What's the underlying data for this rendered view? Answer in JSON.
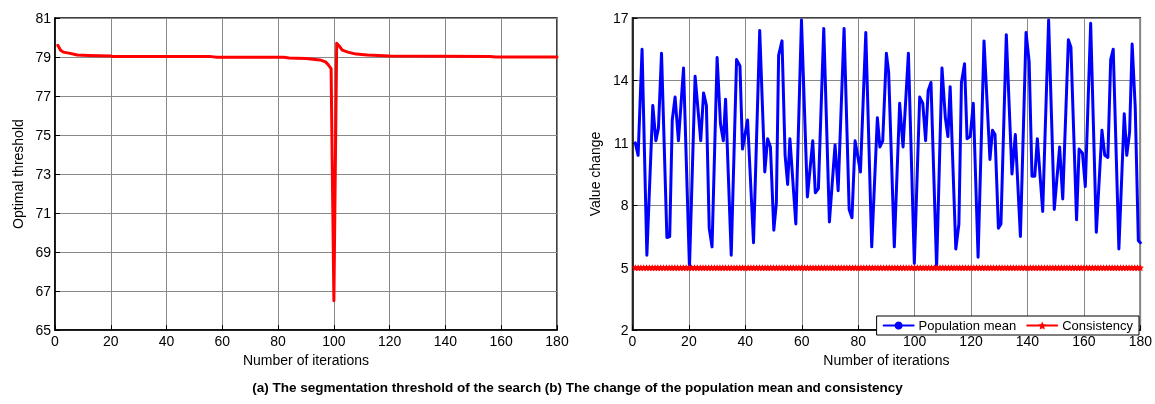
{
  "chart_data": [
    {
      "type": "line",
      "xlabel": "Number of iterations",
      "ylabel": "Optimal threshold",
      "annotations": [
        "(a) The segmentation threshold of the search (b) The change of the population mean and consistency"
      ],
      "xlim": [
        0,
        180
      ],
      "xticks": [
        0,
        20,
        40,
        60,
        80,
        100,
        120,
        140,
        160,
        180
      ],
      "ylim": [
        65,
        81
      ],
      "yticks": [
        65,
        67,
        69,
        71,
        73,
        75,
        77,
        79,
        81
      ],
      "grid": true,
      "marker": "none",
      "line_style": "solid",
      "series": [
        {
          "color": "#ff0000",
          "x": [
            1,
            2,
            3,
            5,
            8,
            12,
            20,
            21,
            56,
            58,
            82,
            84,
            90,
            95,
            97,
            98,
            99,
            100,
            101,
            102,
            103,
            105,
            108,
            112,
            120,
            156,
            158,
            180
          ],
          "values": [
            79.6,
            79.35,
            79.25,
            79.2,
            79.1,
            79.08,
            79.05,
            79.02,
            79.02,
            78.99,
            78.99,
            78.95,
            78.92,
            78.85,
            78.75,
            78.6,
            78.4,
            66.5,
            79.7,
            79.55,
            79.35,
            79.25,
            79.15,
            79.1,
            79.05,
            79.03,
            79.0,
            79.0
          ]
        }
      ]
    },
    {
      "type": "line",
      "xlabel": "Number of iterations",
      "ylabel": "Value change",
      "xlim": [
        0,
        180
      ],
      "xticks": [
        0,
        20,
        40,
        60,
        80,
        100,
        120,
        140,
        160,
        180
      ],
      "ylim": [
        2,
        17
      ],
      "yticks": [
        2,
        5,
        8,
        11,
        14,
        17
      ],
      "grid": true,
      "legend": "bottom right",
      "line_style": "solid",
      "series": [
        {
          "name": "Population mean",
          "color": "#0000ff",
          "marker": "none",
          "x": [
            1,
            2,
            3.4,
            5.1,
            7.2,
            8.3,
            9.2,
            10.3,
            12.2,
            13.2,
            14.1,
            15.1,
            16.3,
            18.1,
            20.2,
            22.2,
            24.2,
            25.2,
            26.2,
            27.2,
            28.2,
            30,
            31.2,
            32.2,
            33,
            35,
            36.9,
            38.1,
            39,
            40.8,
            42.9,
            45.1,
            46.9,
            47.9,
            48.9,
            50.1,
            51,
            51.8,
            53,
            54.1,
            55,
            55.8,
            57.9,
            59.9,
            62,
            63.9,
            64.8,
            65.9,
            67.8,
            69.8,
            71.8,
            72.9,
            75,
            76.8,
            77.8,
            78.9,
            80.8,
            82.7,
            84.8,
            86.8,
            87.7,
            88.7,
            90,
            90.8,
            92.8,
            94.7,
            95.9,
            97.8,
            99.9,
            101.8,
            102.9,
            103.9,
            104.8,
            105.8,
            107.8,
            109.7,
            110.9,
            111.8,
            112.6,
            114.6,
            115.7,
            116.6,
            117.7,
            118.6,
            119.7,
            120.8,
            122.5,
            124.6,
            126.7,
            127.6,
            128.5,
            129.7,
            130.6,
            132.5,
            134.5,
            135.7,
            137.5,
            139.5,
            140.6,
            141.6,
            142.6,
            143.5,
            145.4,
            147.5,
            149.5,
            151.4,
            152.5,
            154.5,
            155.4,
            157.4,
            158.3,
            159.5,
            160.5,
            162.4,
            164.4,
            166.4,
            167.4,
            168.5,
            169.5,
            170.4,
            172.4,
            174.3,
            175.2,
            176.2,
            177.1,
            178.2,
            179.3,
            180
          ],
          "values": [
            11.0,
            10.4,
            15.5,
            5.6,
            12.8,
            11.1,
            11.7,
            15.3,
            6.45,
            6.5,
            12.1,
            13.2,
            11.1,
            14.6,
            5.0,
            14.2,
            11.1,
            13.4,
            12.8,
            6.9,
            6.0,
            15.1,
            11.9,
            11.1,
            13.1,
            5.6,
            15.0,
            14.7,
            10.7,
            12.1,
            6.2,
            16.4,
            9.6,
            11.2,
            10.8,
            6.8,
            8.1,
            15.2,
            15.9,
            10.4,
            9.0,
            11.2,
            7.1,
            16.9,
            8.4,
            11.1,
            8.6,
            8.8,
            16.5,
            7.2,
            10.9,
            8.7,
            16.5,
            7.8,
            7.4,
            11.1,
            9.6,
            16.3,
            6.0,
            12.2,
            10.8,
            11.1,
            15.3,
            14.4,
            6.0,
            12.9,
            10.8,
            15.3,
            5.2,
            13.2,
            12.9,
            11.1,
            13.5,
            13.9,
            5.0,
            14.6,
            12.2,
            11.3,
            13.7,
            5.9,
            7.1,
            13.9,
            14.8,
            11.2,
            11.3,
            12.9,
            5.5,
            15.9,
            10.2,
            11.6,
            11.4,
            6.9,
            7.1,
            16.2,
            9.5,
            11.4,
            6.5,
            16.3,
            14.9,
            9.4,
            9.4,
            11.2,
            7.7,
            16.9,
            7.8,
            10.8,
            8.3,
            15.95,
            15.6,
            7.3,
            10.7,
            10.5,
            8.9,
            16.75,
            6.7,
            11.6,
            10.4,
            10.3,
            15.0,
            15.5,
            5.9,
            12.4,
            10.4,
            11.5,
            15.75,
            12.7,
            6.3,
            6.2
          ]
        },
        {
          "name": "Consistency",
          "color": "#ff0000",
          "marker": "star",
          "x": [
            1,
            2,
            3,
            4,
            5,
            6,
            7,
            8,
            9,
            10,
            11,
            12,
            13,
            14,
            15,
            16,
            17,
            18,
            19,
            20,
            21,
            22,
            23,
            24,
            25,
            26,
            27,
            28,
            29,
            30,
            31,
            32,
            33,
            34,
            35,
            36,
            37,
            38,
            39,
            40,
            41,
            42,
            43,
            44,
            45,
            46,
            47,
            48,
            49,
            50,
            51,
            52,
            53,
            54,
            55,
            56,
            57,
            58,
            59,
            60,
            61,
            62,
            63,
            64,
            65,
            66,
            67,
            68,
            69,
            70,
            71,
            72,
            73,
            74,
            75,
            76,
            77,
            78,
            79,
            80,
            81,
            82,
            83,
            84,
            85,
            86,
            87,
            88,
            89,
            90,
            91,
            92,
            93,
            94,
            95,
            96,
            97,
            98,
            99,
            100,
            101,
            102,
            103,
            104,
            105,
            106,
            107,
            108,
            109,
            110,
            111,
            112,
            113,
            114,
            115,
            116,
            117,
            118,
            119,
            120,
            121,
            122,
            123,
            124,
            125,
            126,
            127,
            128,
            129,
            130,
            131,
            132,
            133,
            134,
            135,
            136,
            137,
            138,
            139,
            140,
            141,
            142,
            143,
            144,
            145,
            146,
            147,
            148,
            149,
            150,
            151,
            152,
            153,
            154,
            155,
            156,
            157,
            158,
            159,
            160,
            161,
            162,
            163,
            164,
            165,
            166,
            167,
            168,
            169,
            170,
            171,
            172,
            173,
            174,
            175,
            176,
            177,
            178,
            179,
            180
          ],
          "values": [
            5,
            5,
            5,
            5,
            5,
            5,
            5,
            5,
            5,
            5,
            5,
            5,
            5,
            5,
            5,
            5,
            5,
            5,
            5,
            5,
            5,
            5,
            5,
            5,
            5,
            5,
            5,
            5,
            5,
            5,
            5,
            5,
            5,
            5,
            5,
            5,
            5,
            5,
            5,
            5,
            5,
            5,
            5,
            5,
            5,
            5,
            5,
            5,
            5,
            5,
            5,
            5,
            5,
            5,
            5,
            5,
            5,
            5,
            5,
            5,
            5,
            5,
            5,
            5,
            5,
            5,
            5,
            5,
            5,
            5,
            5,
            5,
            5,
            5,
            5,
            5,
            5,
            5,
            5,
            5,
            5,
            5,
            5,
            5,
            5,
            5,
            5,
            5,
            5,
            5,
            5,
            5,
            5,
            5,
            5,
            5,
            5,
            5,
            5,
            5,
            5,
            5,
            5,
            5,
            5,
            5,
            5,
            5,
            5,
            5,
            5,
            5,
            5,
            5,
            5,
            5,
            5,
            5,
            5,
            5,
            5,
            5,
            5,
            5,
            5,
            5,
            5,
            5,
            5,
            5,
            5,
            5,
            5,
            5,
            5,
            5,
            5,
            5,
            5,
            5,
            5,
            5,
            5,
            5,
            5,
            5,
            5,
            5,
            5,
            5,
            5,
            5,
            5,
            5,
            5,
            5,
            5,
            5,
            5,
            5,
            5,
            5,
            5,
            5,
            5,
            5,
            5,
            5,
            5,
            5,
            5,
            5,
            5,
            5,
            5,
            5,
            5,
            5,
            5,
            5
          ]
        }
      ]
    }
  ]
}
